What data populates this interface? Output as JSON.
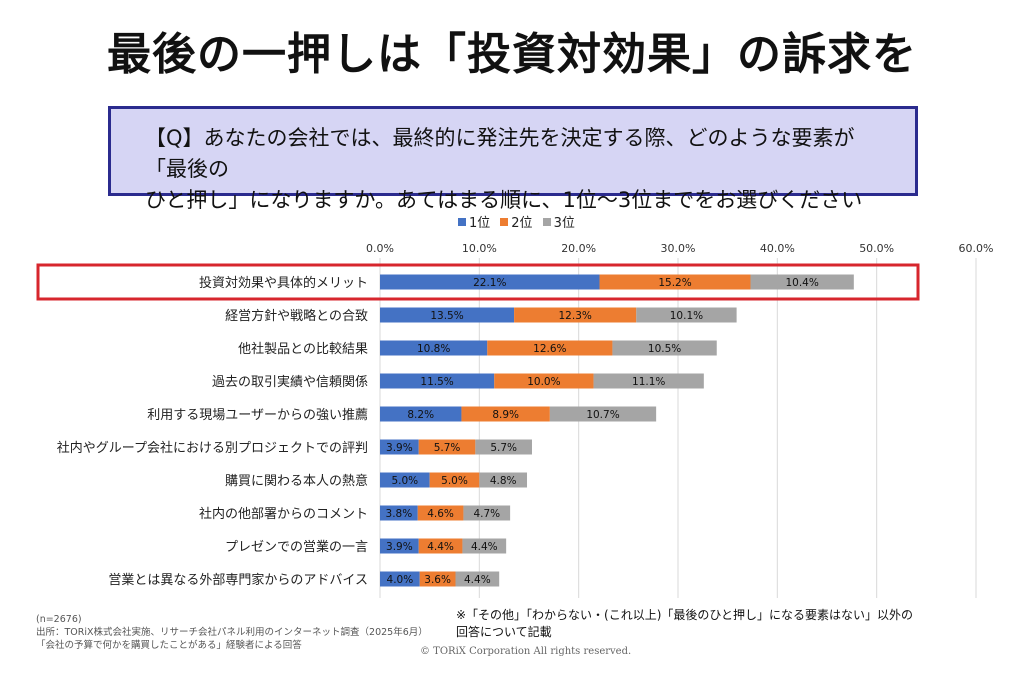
{
  "headline": "最後の一押しは「投資対効果」の訴求を",
  "question": {
    "line1": "【Q】あなたの会社では、最終的に発注先を決定する際、どのような要素が「最後の",
    "line2": "ひと押し」になりますか。あてはまる順に、1位～3位までをお選びください"
  },
  "colors": {
    "rank1": "#4472c4",
    "rank2": "#ed7d31",
    "rank3": "#a5a5a5",
    "highlight": "#d7262d"
  },
  "chart_data": {
    "type": "bar",
    "orientation": "horizontal-stacked",
    "xlim": [
      0,
      60
    ],
    "ticks": [
      "0.0%",
      "10.0%",
      "20.0%",
      "30.0%",
      "40.0%",
      "50.0%",
      "60.0%"
    ],
    "tick_values": [
      0,
      10,
      20,
      30,
      40,
      50,
      60
    ],
    "grid": true,
    "legend_position": "top",
    "highlight_index": 0,
    "categories": [
      "投資対効果や具体的メリット",
      "経営方針や戦略との合致",
      "他社製品との比較結果",
      "過去の取引実績や信頼関係",
      "利用する現場ユーザーからの強い推薦",
      "社内やグループ会社における別プロジェクトでの評判",
      "購買に関わる本人の熱意",
      "社内の他部署からのコメント",
      "プレゼンでの営業の一言",
      "営業とは異なる外部専門家からのアドバイス"
    ],
    "series": [
      {
        "name": "1位",
        "values": [
          22.1,
          13.5,
          10.8,
          11.5,
          8.2,
          3.9,
          5.0,
          3.8,
          3.9,
          4.0
        ],
        "labels": [
          "22.1%",
          "13.5%",
          "10.8%",
          "11.5%",
          "8.2%",
          "3.9%",
          "5.0%",
          "3.8%",
          "3.9%",
          "4.0%"
        ]
      },
      {
        "name": "2位",
        "values": [
          15.2,
          12.3,
          12.6,
          10.0,
          8.9,
          5.7,
          5.0,
          4.6,
          4.4,
          3.6
        ],
        "labels": [
          "15.2%",
          "12.3%",
          "12.6%",
          "10.0%",
          "8.9%",
          "5.7%",
          "5.0%",
          "4.6%",
          "4.4%",
          "3.6%"
        ]
      },
      {
        "name": "3位",
        "values": [
          10.4,
          10.1,
          10.5,
          11.1,
          10.7,
          5.7,
          4.8,
          4.7,
          4.4,
          4.4
        ],
        "labels": [
          "10.4%",
          "10.1%",
          "10.5%",
          "11.1%",
          "10.7%",
          "5.7%",
          "4.8%",
          "4.7%",
          "4.4%",
          "4.4%"
        ]
      }
    ]
  },
  "footnote": {
    "line1": "(n=2676)",
    "line2": "出所：TORiX株式会社実施、リサーチ会社パネル利用のインターネット調査（2025年6月）",
    "line3": "「会社の予算で何かを購買したことがある」経験者による回答"
  },
  "note": {
    "line1": "※「その他」「わからない・(これ以上)「最後のひと押し」になる要素はない」以外の",
    "line2": "回答について記載"
  },
  "copyright": "© TORiX Corporation All rights reserved."
}
